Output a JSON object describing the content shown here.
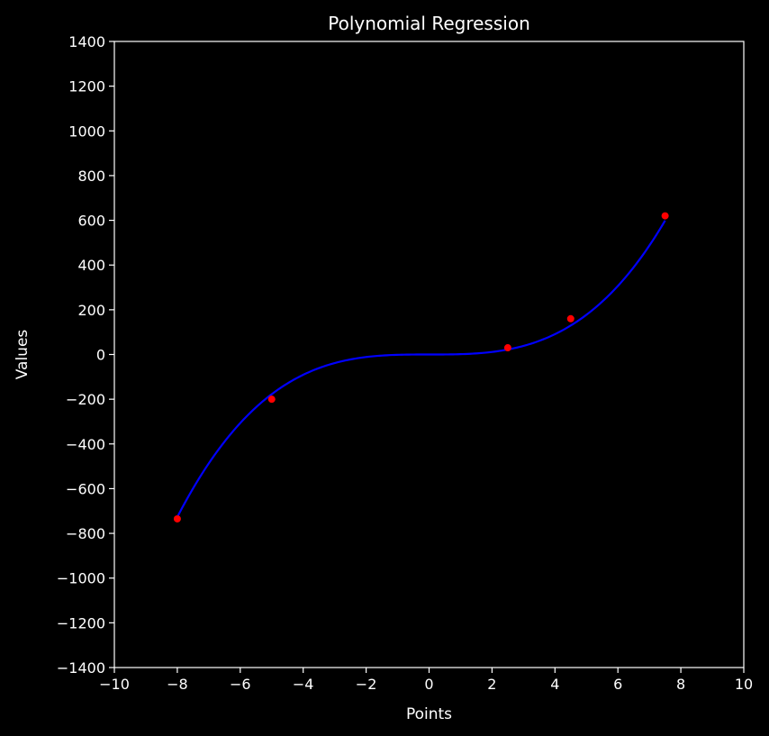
{
  "chart_data": {
    "type": "scatter",
    "title": "Polynomial Regression",
    "xlabel": "Points",
    "ylabel": "Values",
    "xlim": [
      -10,
      10
    ],
    "ylim": [
      -1400,
      1400
    ],
    "xticks": [
      -10,
      -8,
      -6,
      -4,
      -2,
      0,
      2,
      4,
      6,
      8,
      10
    ],
    "yticks": [
      -1400,
      -1200,
      -1000,
      -800,
      -600,
      -400,
      -200,
      0,
      200,
      400,
      600,
      800,
      1000,
      1200,
      1400
    ],
    "grid": false,
    "points": {
      "x": [
        -8,
        -5,
        2.5,
        4.5,
        7.5
      ],
      "y": [
        -735,
        -200,
        30,
        160,
        620
      ]
    },
    "fit_curve": {
      "x_range": [
        -8,
        7.5
      ],
      "coefficients_cubic_to_const": [
        1.42,
        0.0,
        0.0,
        0.0
      ]
    },
    "colors": {
      "background": "#000000",
      "axes": "#ffffff",
      "points": "#ff0000",
      "curve": "#0000ff"
    }
  }
}
